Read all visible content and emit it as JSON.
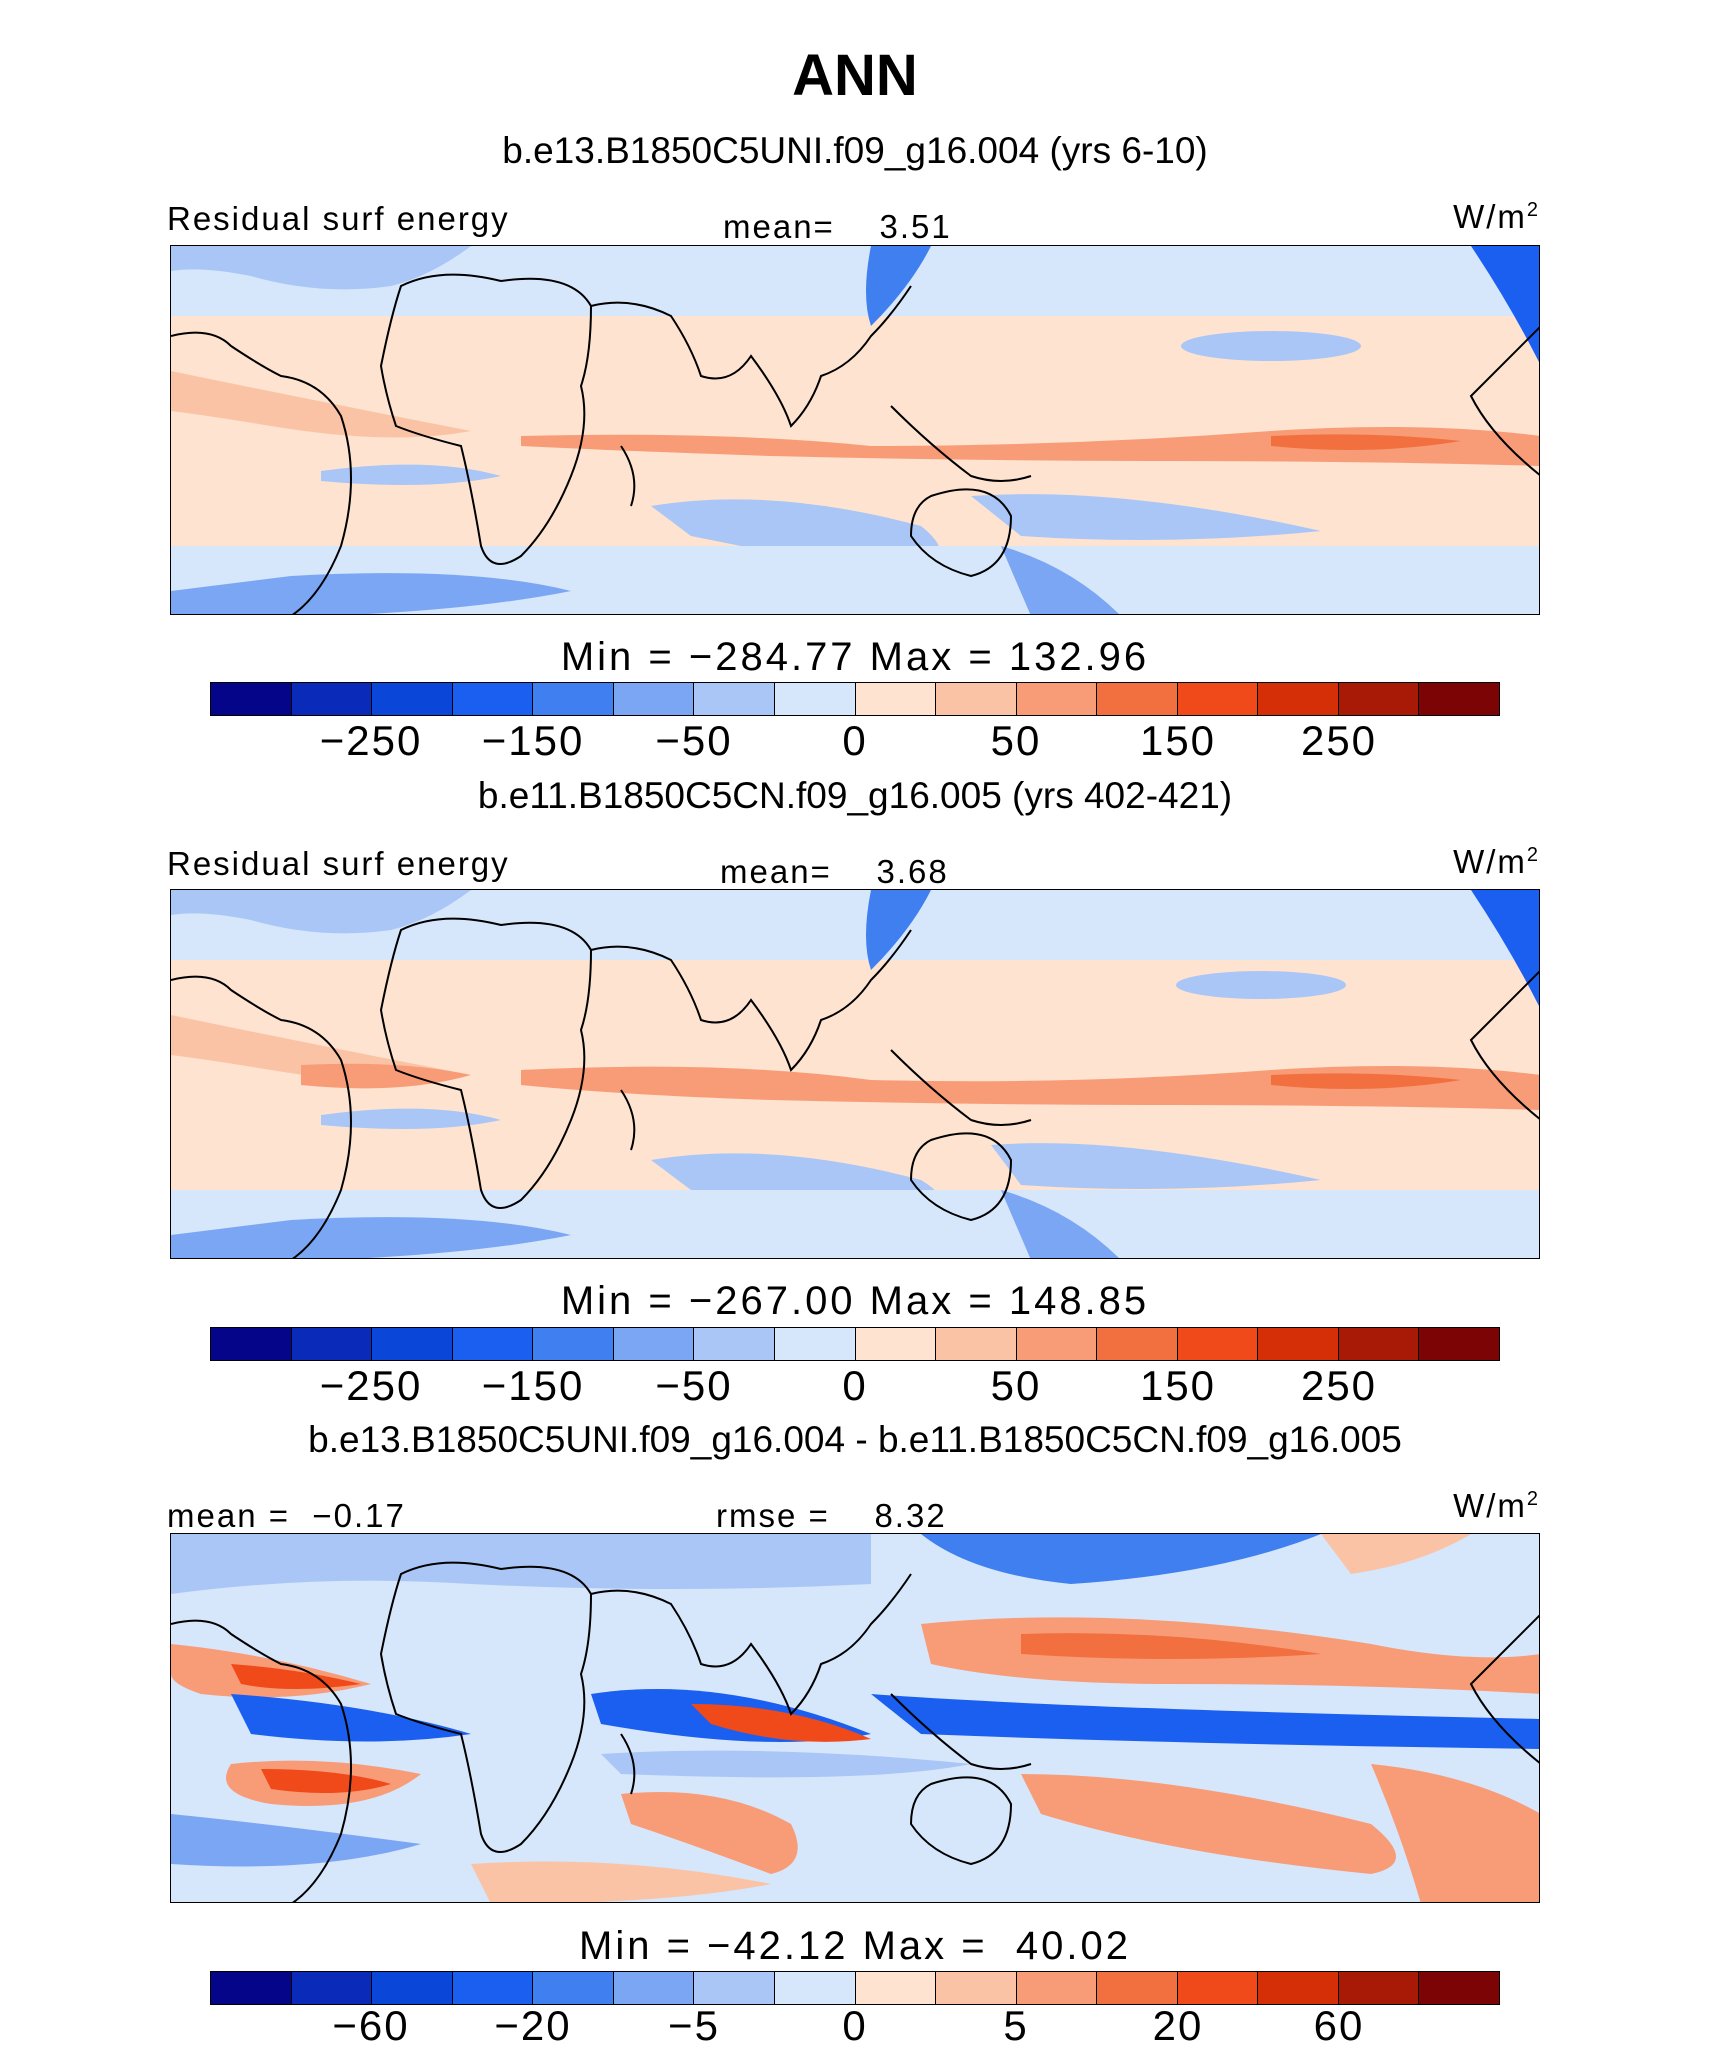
{
  "title": "ANN",
  "units": "W/m",
  "units_sup": "2",
  "panels": [
    {
      "subtitle": "b.e13.B1850C5UNI.f09_g16.004 (yrs 6-10)",
      "left_label": "Residual surf energy",
      "center_label": "mean=    3.51",
      "minmax": "Min = −284.77 Max = 132.96",
      "ticks": [
        "−250",
        "−150",
        "−50",
        "0",
        "50",
        "150",
        "250"
      ]
    },
    {
      "subtitle": "b.e11.B1850C5CN.f09_g16.005 (yrs 402-421)",
      "left_label": "Residual surf energy",
      "center_label": "mean=    3.68",
      "minmax": "Min = −267.00 Max = 148.85",
      "ticks": [
        "−250",
        "−150",
        "−50",
        "0",
        "50",
        "150",
        "250"
      ]
    },
    {
      "subtitle": "b.e13.B1850C5UNI.f09_g16.004 - b.e11.B1850C5CN.f09_g16.005",
      "left_label": "mean =  −0.17",
      "center_label": "rmse =    8.32",
      "minmax": "Min = −42.12 Max =  40.02",
      "ticks": [
        "−60",
        "−20",
        "−5",
        "0",
        "5",
        "20",
        "60"
      ]
    }
  ],
  "colorbar_colors": [
    "#05058a",
    "#0a2aba",
    "#0a46d8",
    "#1a5ff0",
    "#3f7ff0",
    "#7aa6f3",
    "#a9c6f6",
    "#d6e6fb",
    "#fde3d0",
    "#fbc3a6",
    "#f89c78",
    "#f2703f",
    "#f04a1a",
    "#d52f08",
    "#a81a06",
    "#7d0404"
  ]
}
